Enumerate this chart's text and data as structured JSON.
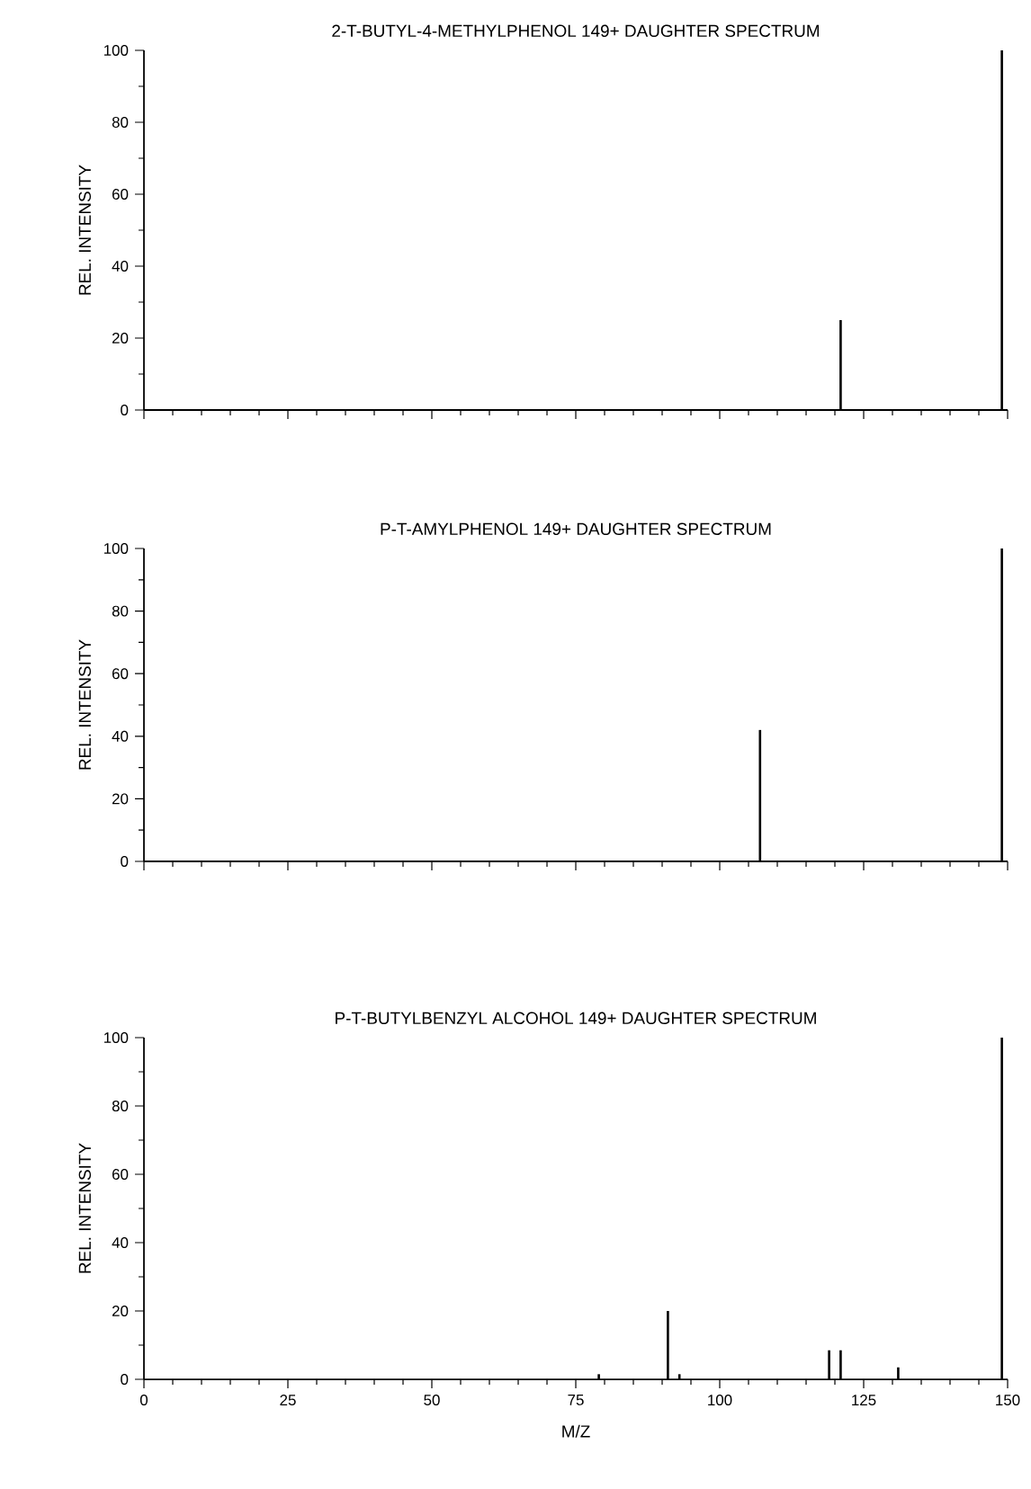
{
  "chart_data": [
    {
      "type": "bar",
      "title": "2-T-BUTYL-4-METHYLPHENOL 149+ DAUGHTER SPECTRUM",
      "ylabel": "REL. INTENSITY",
      "x": [
        121,
        149
      ],
      "values": [
        25,
        100
      ],
      "color": "#000000",
      "xlim": [
        0,
        150
      ],
      "ylim": [
        0,
        100
      ],
      "xticks": [
        0,
        25,
        50,
        75,
        100,
        125,
        150
      ],
      "yticks": [
        0,
        20,
        40,
        60,
        80,
        100
      ],
      "tick_labels": "y"
    },
    {
      "type": "bar",
      "title": "P-T-AMYLPHENOL 149+ DAUGHTER SPECTRUM",
      "ylabel": "REL. INTENSITY",
      "x": [
        107,
        149
      ],
      "values": [
        42,
        100
      ],
      "color": "#000000",
      "xlim": [
        0,
        150
      ],
      "ylim": [
        0,
        100
      ],
      "xticks": [
        0,
        25,
        50,
        75,
        100,
        125,
        150
      ],
      "yticks": [
        0,
        20,
        40,
        60,
        80,
        100
      ],
      "tick_labels": "y"
    },
    {
      "type": "bar",
      "title": "P-T-BUTYLBENZYL ALCOHOL 149+ DAUGHTER SPECTRUM",
      "xlabel": "M/Z",
      "ylabel": "REL. INTENSITY",
      "x": [
        79,
        91,
        93,
        119,
        121,
        131,
        149
      ],
      "values": [
        1.5,
        20,
        1.5,
        8.5,
        8.5,
        3.5,
        100
      ],
      "color": "#000000",
      "xlim": [
        0,
        150
      ],
      "ylim": [
        0,
        100
      ],
      "xticks": [
        0,
        25,
        50,
        75,
        100,
        125,
        150
      ],
      "yticks": [
        0,
        20,
        40,
        60,
        80,
        100
      ]
    }
  ]
}
